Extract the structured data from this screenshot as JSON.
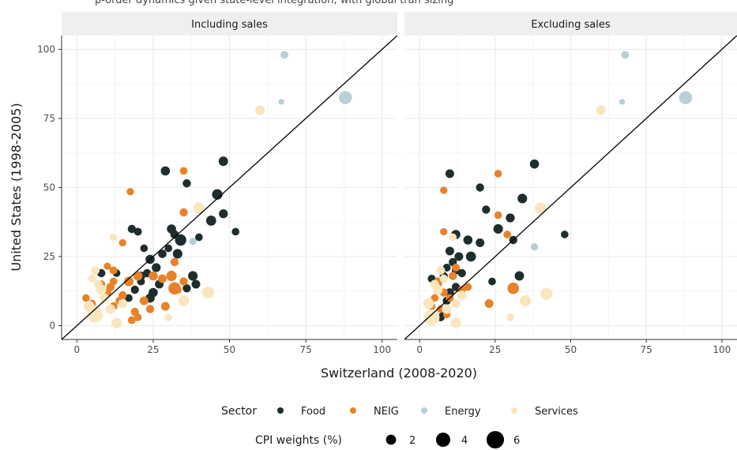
{
  "caption_fragment": "p-order dynamics given state-level integration, with global tran sizing",
  "chart_data": {
    "type": "scatter",
    "xlabel": "Switzerland (2008-2020)",
    "ylabel": "United States (1998-2005)",
    "xlim": [
      -5,
      105
    ],
    "ylim": [
      -5,
      105
    ],
    "x_ticks": [
      0,
      25,
      50,
      75,
      100
    ],
    "y_ticks": [
      0,
      25,
      50,
      75,
      100
    ],
    "grid": true,
    "reference_line": "y = x",
    "legend_placement": "bottom",
    "sector_legend": {
      "title": "Sector",
      "items": [
        {
          "name": "Food",
          "color": "#1f2d2e"
        },
        {
          "name": "NEIG",
          "color": "#e8822a"
        },
        {
          "name": "Energy",
          "color": "#b9cfd6"
        },
        {
          "name": "Services",
          "color": "#f8e6bf"
        }
      ]
    },
    "size_legend": {
      "title": "CPI weights (%)",
      "items": [
        {
          "label": "2",
          "value": 2
        },
        {
          "label": "4",
          "value": 4
        },
        {
          "label": "6",
          "value": 6
        }
      ]
    },
    "panels": [
      {
        "title": "Including sales",
        "series": [
          {
            "name": "Food",
            "points": [
              [
                29,
                56,
                2.0
              ],
              [
                48,
                59.5,
                2.1
              ],
              [
                36,
                51.5,
                1.6
              ],
              [
                46,
                47.5,
                2.6
              ],
              [
                48,
                40.5,
                1.9
              ],
              [
                52,
                34,
                1.4
              ],
              [
                44,
                38,
                2.4
              ],
              [
                40,
                32,
                1.4
              ],
              [
                34,
                31,
                3.1
              ],
              [
                31,
                35,
                2.0
              ],
              [
                32,
                33,
                1.7
              ],
              [
                30,
                28,
                1.4
              ],
              [
                28,
                26,
                1.7
              ],
              [
                33,
                26,
                2.2
              ],
              [
                24,
                24,
                2.0
              ],
              [
                26,
                21,
                1.9
              ],
              [
                23,
                19,
                1.6
              ],
              [
                21,
                18,
                1.8
              ],
              [
                38,
                18,
                2.2
              ],
              [
                39,
                15,
                1.8
              ],
              [
                36,
                13.5,
                1.6
              ],
              [
                25,
                12,
                2.0
              ],
              [
                24,
                10,
                2.0
              ],
              [
                19,
                13,
                1.6
              ],
              [
                18,
                35,
                1.6
              ],
              [
                20,
                34,
                1.5
              ],
              [
                22,
                28,
                1.4
              ],
              [
                8,
                19,
                1.6
              ],
              [
                17,
                10,
                1.4
              ],
              [
                13,
                19,
                1.4
              ],
              [
                21,
                16,
                1.5
              ],
              [
                27,
                15,
                1.8
              ]
            ]
          },
          {
            "name": "NEIG",
            "points": [
              [
                17.5,
                48.5,
                1.3
              ],
              [
                35,
                56,
                1.4
              ],
              [
                35,
                41,
                1.6
              ],
              [
                32,
                23,
                1.6
              ],
              [
                15,
                30,
                1.3
              ],
              [
                12,
                20,
                1.5
              ],
              [
                10,
                21.5,
                1.3
              ],
              [
                12,
                16,
                1.4
              ],
              [
                17,
                16,
                2.2
              ],
              [
                20,
                18,
                2.0
              ],
              [
                25,
                18,
                2.0
              ],
              [
                31,
                18,
                2.6
              ],
              [
                32,
                13.5,
                3.6
              ],
              [
                28,
                17,
                1.8
              ],
              [
                24,
                6,
                1.6
              ],
              [
                22,
                9,
                1.8
              ],
              [
                19,
                5,
                1.6
              ],
              [
                20,
                3,
                1.4
              ],
              [
                29,
                7,
                1.8
              ],
              [
                33,
                13,
                1.6
              ],
              [
                35,
                16,
                1.6
              ],
              [
                14,
                9,
                1.6
              ],
              [
                12,
                7,
                1.6
              ],
              [
                10,
                12,
                1.6
              ],
              [
                15,
                11,
                1.6
              ],
              [
                9,
                10,
                1.6
              ],
              [
                5,
                8,
                1.4
              ],
              [
                3,
                10,
                1.4
              ],
              [
                8,
                15,
                1.5
              ],
              [
                18,
                2,
                1.5
              ],
              [
                11,
                14,
                1.6
              ]
            ]
          },
          {
            "name": "Energy",
            "points": [
              [
                68,
                98,
                1.5
              ],
              [
                67,
                81,
                0.8
              ],
              [
                88,
                82.5,
                4.0
              ],
              [
                38,
                30.5,
                1.3
              ]
            ]
          },
          {
            "name": "Services",
            "points": [
              [
                60,
                78,
                2.2
              ],
              [
                40,
                42.5,
                3.2
              ],
              [
                43,
                12,
                3.4
              ],
              [
                35,
                9,
                3.0
              ],
              [
                30,
                3,
                1.4
              ],
              [
                6,
                4,
                6.0
              ],
              [
                13,
                1,
                2.6
              ],
              [
                9,
                10,
                2.0
              ],
              [
                4,
                7,
                2.8
              ],
              [
                8,
                13,
                2.4
              ],
              [
                11,
                6,
                2.2
              ],
              [
                6,
                20,
                1.8
              ],
              [
                5,
                17,
                1.6
              ],
              [
                12,
                32,
                1.4
              ],
              [
                7,
                15,
                1.8
              ],
              [
                15,
                8,
                2.0
              ]
            ]
          }
        ]
      },
      {
        "title": "Excluding sales",
        "series": [
          {
            "name": "Food",
            "points": [
              [
                38,
                58.5,
                2.0
              ],
              [
                20,
                50,
                1.6
              ],
              [
                10,
                55,
                1.8
              ],
              [
                34,
                46,
                2.2
              ],
              [
                48,
                33,
                1.4
              ],
              [
                22,
                42,
                1.6
              ],
              [
                30,
                39,
                1.9
              ],
              [
                26,
                35,
                2.2
              ],
              [
                31,
                31,
                1.6
              ],
              [
                12,
                33,
                2.0
              ],
              [
                16,
                31,
                2.0
              ],
              [
                20,
                30,
                1.8
              ],
              [
                10,
                27,
                1.8
              ],
              [
                13,
                25,
                1.8
              ],
              [
                17,
                25,
                2.4
              ],
              [
                11,
                23,
                1.6
              ],
              [
                9,
                21,
                1.5
              ],
              [
                12,
                20,
                1.6
              ],
              [
                14,
                19,
                1.6
              ],
              [
                8,
                18,
                1.6
              ],
              [
                4,
                17,
                1.5
              ],
              [
                6,
                14,
                1.5
              ],
              [
                10,
                12,
                1.7
              ],
              [
                12,
                14,
                1.6
              ],
              [
                33,
                18,
                2.1
              ],
              [
                24,
                16,
                1.4
              ],
              [
                9,
                9,
                1.6
              ],
              [
                8,
                5,
                1.6
              ],
              [
                7,
                3,
                1.5
              ]
            ]
          },
          {
            "name": "NEIG",
            "points": [
              [
                26,
                55,
                1.4
              ],
              [
                8,
                49,
                1.3
              ],
              [
                8,
                34,
                1.3
              ],
              [
                26,
                40,
                1.4
              ],
              [
                29,
                33,
                1.4
              ],
              [
                12,
                21,
                1.5
              ],
              [
                11,
                18,
                1.6
              ],
              [
                6,
                16,
                1.6
              ],
              [
                8,
                12,
                1.6
              ],
              [
                10,
                10,
                1.5
              ],
              [
                14,
                13,
                1.5
              ],
              [
                16,
                14,
                1.4
              ],
              [
                23,
                8,
                1.8
              ],
              [
                31,
                13.5,
                3.2
              ],
              [
                5,
                10,
                1.4
              ],
              [
                4,
                7,
                1.4
              ],
              [
                7,
                6,
                1.5
              ],
              [
                9,
                4,
                1.3
              ],
              [
                5,
                3,
                1.3
              ],
              [
                6,
                15,
                1.8
              ]
            ]
          },
          {
            "name": "Energy",
            "points": [
              [
                68,
                98,
                1.5
              ],
              [
                67,
                81,
                0.8
              ],
              [
                88,
                82.5,
                4.0
              ],
              [
                38,
                28.5,
                1.3
              ]
            ]
          },
          {
            "name": "Services",
            "points": [
              [
                60,
                78,
                2.2
              ],
              [
                40,
                42.5,
                3.2
              ],
              [
                42,
                11.5,
                3.4
              ],
              [
                35,
                9,
                3.0
              ],
              [
                30,
                3,
                1.4
              ],
              [
                4,
                3,
                6.0
              ],
              [
                12,
                1,
                2.6
              ],
              [
                14,
                11,
                2.0
              ],
              [
                3,
                8,
                2.8
              ],
              [
                6,
                13,
                2.4
              ],
              [
                9,
                6,
                2.2
              ],
              [
                7,
                20,
                1.8
              ],
              [
                8,
                17,
                1.6
              ],
              [
                11,
                32,
                1.4
              ],
              [
                5,
                15,
                1.8
              ],
              [
                12,
                8,
                2.0
              ]
            ]
          }
        ]
      }
    ]
  }
}
